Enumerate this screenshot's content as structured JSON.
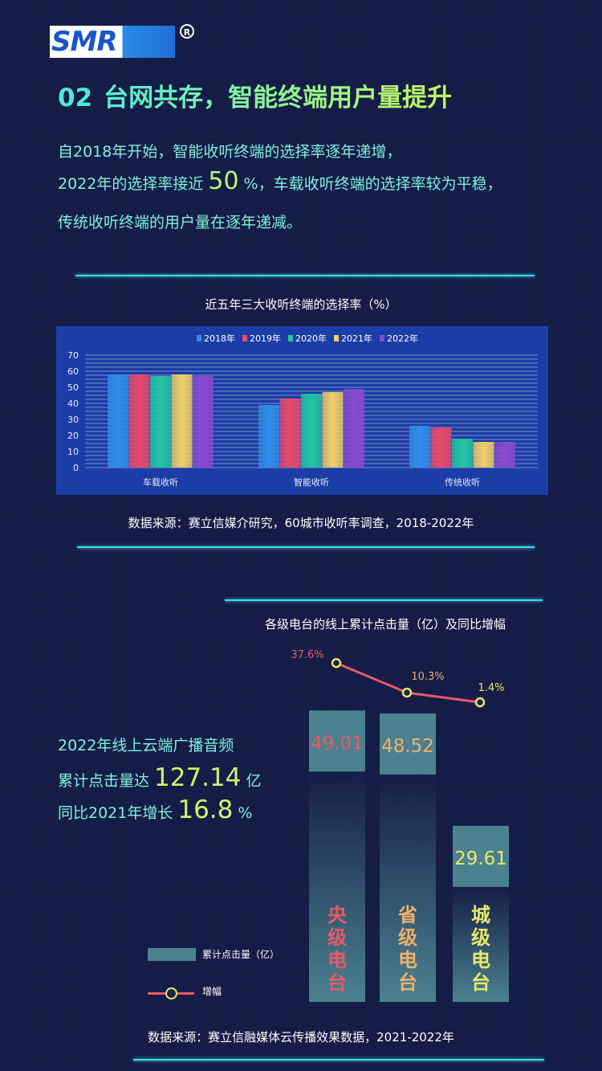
{
  "logo": {
    "text": "SMR",
    "registered": "R"
  },
  "headline": {
    "number": "02",
    "text": "台网共存，智能终端用户量提升"
  },
  "intro": {
    "line1": "自2018年开始，智能收听终端的选择率逐年递增，",
    "line2_pre": "2022年的选择率接近",
    "line2_value": "50",
    "line2_post": "%，车载收听终端的选择率较为平稳，",
    "line3": "传统收听终端的用户量在逐年递减。"
  },
  "chart_data": [
    {
      "type": "bar",
      "title": "近五年三大收听终端的选择率（%）",
      "categories": [
        "车载收听",
        "智能收听",
        "传统收听"
      ],
      "series": [
        {
          "name": "2018年",
          "color": "#2f8ee8",
          "values": [
            58,
            39,
            26
          ]
        },
        {
          "name": "2019年",
          "color": "#e84a6a",
          "values": [
            58,
            43,
            25
          ]
        },
        {
          "name": "2020年",
          "color": "#22c6a2",
          "values": [
            57,
            46,
            18
          ]
        },
        {
          "name": "2021年",
          "color": "#f2cf6a",
          "values": [
            58,
            47,
            16
          ]
        },
        {
          "name": "2022年",
          "color": "#8a4ad0",
          "values": [
            57,
            49,
            16
          ]
        }
      ],
      "ylim": [
        0,
        70
      ],
      "yticks": [
        0,
        10,
        20,
        30,
        40,
        50,
        60,
        70
      ],
      "legend": "top",
      "grid": true
    },
    {
      "type": "bar",
      "title": "各级电台的线上累计点击量（亿）及同比增幅",
      "categories": [
        "央级电台",
        "省级电台",
        "城级电台"
      ],
      "series": [
        {
          "name": "累计点击量（亿）",
          "values": [
            49.01,
            48.52,
            29.61
          ],
          "value_labels": [
            "49.01",
            "48.52",
            "29.61"
          ]
        },
        {
          "name": "增幅",
          "type": "line",
          "values": [
            37.6,
            10.3,
            1.4
          ],
          "value_labels": [
            "37.6%",
            "10.3%",
            "1.4%"
          ]
        }
      ],
      "category_label_colors": [
        "#e85a6a",
        "#f0b06a",
        "#e8e86a"
      ],
      "value_label_colors": [
        "#e85a6a",
        "#f0b06a",
        "#e8e86a"
      ],
      "legend": "bottom-left"
    }
  ],
  "source1": "数据来源：赛立信媒介研究，60城市收听率调查，2018-2022年",
  "stats": {
    "line1": "2022年线上云端广播音频",
    "line2_pre": "累计点击量达",
    "line2_value": "127.14",
    "line2_unit": "亿",
    "line3_pre": "同比2021年增长",
    "line3_value": "16.8",
    "line3_unit": "%"
  },
  "source2": "数据来源：赛立信融媒体云传播效果数据，2021-2022年"
}
